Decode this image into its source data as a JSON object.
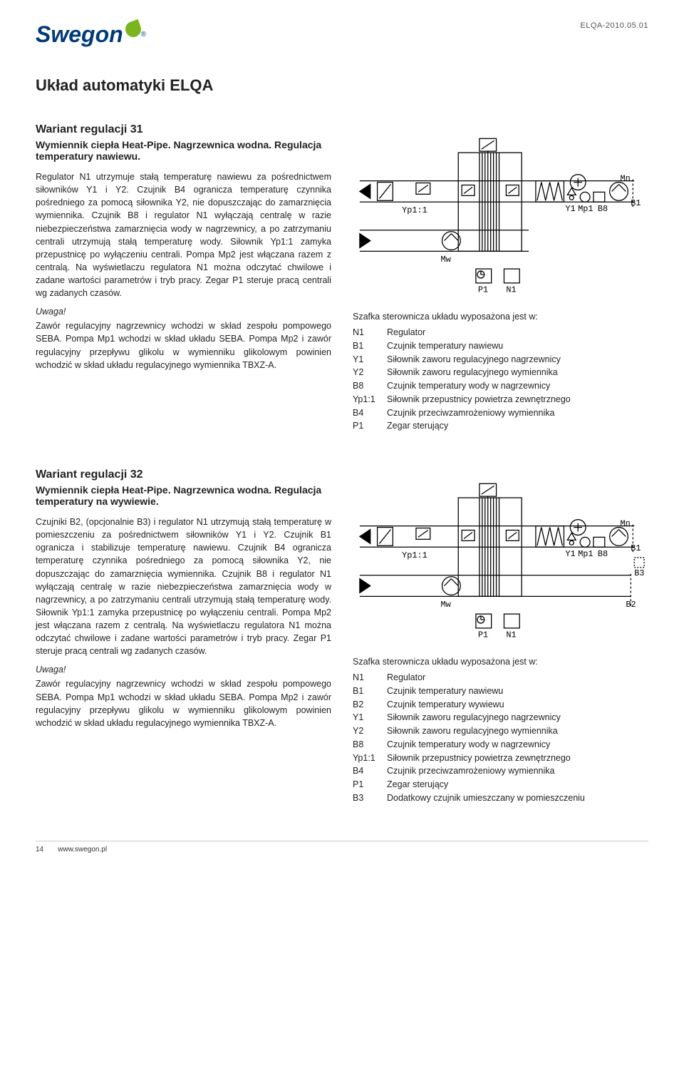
{
  "doc_code": "ELQA-2010.05.01",
  "logo_text": "Swegon",
  "logo_reg": "®",
  "page_title": "Układ automatyki ELQA",
  "footer_page": "14",
  "footer_url": "www.swegon.pl",
  "brand_color": "#003a78",
  "leaf_color": "#7ab51d",
  "v31": {
    "title": "Wariant regulacji 31",
    "subtitle": "Wymiennik ciepła Heat-Pipe. Nagrzewnica wodna. Regulacja temperatury nawiewu.",
    "body": "Regulator N1 utrzymuje stałą temperaturę nawiewu za pośrednictwem siłowników Y1 i Y2. Czujnik B4 ogranicza temperaturę czynnika pośredniego za pomocą siłownika Y2, nie dopuszczając do zamarznięcia wymiennika. Czujnik B8 i regulator N1 wyłączają centralę w razie niebezpieczeństwa zamarznięcia wody w nagrzewnicy, a po zatrzymaniu centrali utrzymują stałą temperaturę wody. Siłownik Yp1:1 zamyka przepustnicę po wyłączeniu centrali. Pompa Mp2 jest włączana razem z centralą. Na wyświetlaczu regulatora N1 można odczytać chwilowe i zadane wartości parametrów i tryb pracy. Zegar P1 steruje pracą centrali wg zadanych czasów.",
    "note_label": "Uwaga!",
    "note_body": "Zawór regulacyjny nagrzewnicy wchodzi w skład zespołu pompowego SEBA. Pompa Mp1 wchodzi w skład układu SEBA. Pompa Mp2 i zawór regulacyjny przepływu glikolu w wymienniku glikolowym powinien wchodzić w skład układu regulacyjnego wymiennika TBXZ-A.",
    "legend_intro": "Szafka sterownicza układu wyposażona jest w:",
    "legend": [
      [
        "N1",
        "Regulator"
      ],
      [
        "B1",
        "Czujnik temperatury nawiewu"
      ],
      [
        "Y1",
        "Siłownik zaworu regulacyjnego nagrzewnicy"
      ],
      [
        "Y2",
        "Siłownik zaworu regulacyjnego wymiennika"
      ],
      [
        "B8",
        "Czujnik temperatury wody w nagrzewnicy"
      ],
      [
        "Yp1:1",
        "Siłownik przepustnicy powietrza zewnętrznego"
      ],
      [
        "B4",
        "Czujnik przeciwzamrożeniowy wymiennika"
      ],
      [
        "P1",
        "Zegar sterujący"
      ]
    ],
    "diagram_labels": {
      "yp11": "Yp1:1",
      "mw": "Mw",
      "p1": "P1",
      "n1": "N1",
      "y1": "Y1",
      "mp1": "Mp1",
      "b8": "B8",
      "mn": "Mn",
      "b1": "B1"
    }
  },
  "v32": {
    "title": "Wariant regulacji 32",
    "subtitle": "Wymiennik ciepła Heat-Pipe. Nagrzewnica wodna. Regulacja temperatury na wywiewie.",
    "body": "Czujniki B2, (opcjonalnie B3) i regulator N1 utrzymują stałą temperaturę w pomieszczeniu za pośrednictwem siłowników Y1 i Y2. Czujnik B1 ogranicza i stabilizuje temperaturę nawiewu. Czujnik B4 ogranicza temperaturę czynnika pośredniego za pomocą siłownika Y2, nie dopuszczając do zamarznięcia wymiennika. Czujnik B8 i regulator N1 wyłączają centralę w razie niebezpieczeństwa zamarznięcia wody w nagrzewnicy, a po zatrzymaniu centrali utrzymują stałą temperaturę wody. Siłownik Yp1:1 zamyka przepustnicę po wyłączeniu centrali. Pompa Mp2 jest włączana razem z centralą. Na wyświetlaczu regulatora N1 można odczytać chwilowe i zadane wartości parametrów i tryb pracy. Zegar P1 steruje pracą centrali wg zadanych czasów.",
    "note_label": "Uwaga!",
    "note_body": "Zawór regulacyjny nagrzewnicy wchodzi w skład zespołu pompowego SEBA. Pompa Mp1 wchodzi w skład układu SEBA. Pompa Mp2 i zawór regulacyjny przepływu glikolu w wymienniku glikolowym powinien wchodzić w skład układu regulacyjnego wymiennika TBXZ-A.",
    "legend_intro": "Szafka sterownicza układu wyposażona jest w:",
    "legend": [
      [
        "N1",
        "Regulator"
      ],
      [
        "B1",
        "Czujnik temperatury nawiewu"
      ],
      [
        "B2",
        "Czujnik temperatury wywiewu"
      ],
      [
        "Y1",
        "Siłownik zaworu regulacyjnego nagrzewnicy"
      ],
      [
        "Y2",
        "Siłownik zaworu regulacyjnego wymiennika"
      ],
      [
        "B8",
        "Czujnik temperatury wody w nagrzewnicy"
      ],
      [
        "Yp1:1",
        "Siłownik przepustnicy powietrza zewnętrznego"
      ],
      [
        "B4",
        "Czujnik przeciwzamrożeniowy wymiennika"
      ],
      [
        "P1",
        "Zegar sterujący"
      ],
      [
        "B3",
        "Dodatkowy czujnik umieszczany w pomieszczeniu"
      ]
    ],
    "diagram_labels": {
      "yp11": "Yp1:1",
      "mw": "Mw",
      "p1": "P1",
      "n1": "N1",
      "y1": "Y1",
      "mp1": "Mp1",
      "b8": "B8",
      "mn": "Mn",
      "b1": "B1",
      "b2": "B2",
      "b3": "B3"
    }
  }
}
